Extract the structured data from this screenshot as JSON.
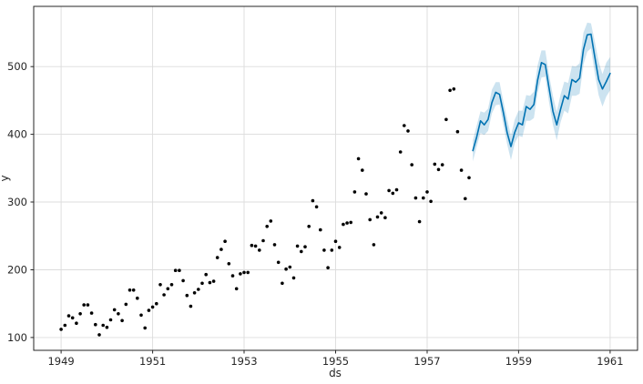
{
  "colors": {
    "line": "#0072B2",
    "band": "rgba(0,114,178,0.2)",
    "points": "#000000",
    "grid": "#dcdcdc",
    "spine": "#262626",
    "text": "#262626",
    "background": "#ffffff"
  },
  "chart_data": {
    "type": "scatter",
    "title": "",
    "xlabel": "ds",
    "ylabel": "y",
    "xlim": [
      1948.4,
      1961.6
    ],
    "ylim": [
      81,
      589
    ],
    "x_ticks": [
      1949,
      1951,
      1953,
      1955,
      1957,
      1959,
      1961
    ],
    "y_ticks": [
      100,
      200,
      300,
      400,
      500
    ],
    "grid": true,
    "legend": "none",
    "series": [
      {
        "name": "history",
        "type": "scatter",
        "color": "#000000",
        "start_year": 1949,
        "freq": "monthly",
        "values": [
          112,
          118,
          132,
          129,
          121,
          135,
          148,
          148,
          136,
          119,
          104,
          118,
          115,
          126,
          141,
          135,
          125,
          149,
          170,
          170,
          158,
          133,
          114,
          140,
          145,
          150,
          178,
          163,
          172,
          178,
          199,
          199,
          184,
          162,
          146,
          166,
          171,
          180,
          193,
          181,
          183,
          218,
          230,
          242,
          209,
          191,
          172,
          194,
          196,
          196,
          236,
          235,
          229,
          243,
          264,
          272,
          237,
          211,
          180,
          201,
          204,
          188,
          235,
          227,
          234,
          264,
          302,
          293,
          259,
          229,
          203,
          229,
          242,
          233,
          267,
          269,
          270,
          315,
          364,
          347,
          312,
          274,
          237,
          278,
          284,
          277,
          317,
          313,
          318,
          374,
          413,
          405,
          355,
          306,
          271,
          306,
          315,
          301,
          356,
          348,
          355,
          422,
          465,
          467,
          404,
          347,
          305,
          336
        ]
      },
      {
        "name": "forecast",
        "type": "line",
        "color": "#0072B2",
        "start_year": 1958,
        "freq": "monthly",
        "values": [
          376,
          396,
          420,
          414,
          422,
          447,
          462,
          459,
          432,
          402,
          382,
          403,
          417,
          414,
          441,
          437,
          444,
          480,
          506,
          503,
          468,
          434,
          414,
          437,
          457,
          452,
          481,
          477,
          483,
          525,
          547,
          548,
          514,
          481,
          467,
          478,
          490
        ]
      },
      {
        "name": "uncertainty",
        "type": "band",
        "color": "rgba(0,114,178,0.2)",
        "start_year": 1958,
        "freq": "monthly",
        "lower": [
          360,
          382,
          402,
          399,
          405,
          431,
          443,
          444,
          414,
          385,
          362,
          387,
          398,
          396,
          420,
          420,
          424,
          461,
          484,
          485,
          447,
          414,
          391,
          418,
          435,
          431,
          457,
          457,
          460,
          503,
          522,
          527,
          490,
          458,
          441,
          456,
          465
        ],
        "upper": [
          391,
          413,
          434,
          432,
          438,
          466,
          477,
          477,
          449,
          422,
          398,
          422,
          435,
          435,
          458,
          457,
          463,
          502,
          524,
          524,
          488,
          457,
          433,
          459,
          478,
          476,
          501,
          500,
          505,
          550,
          565,
          564,
          537,
          507,
          489,
          506,
          514
        ]
      }
    ]
  }
}
